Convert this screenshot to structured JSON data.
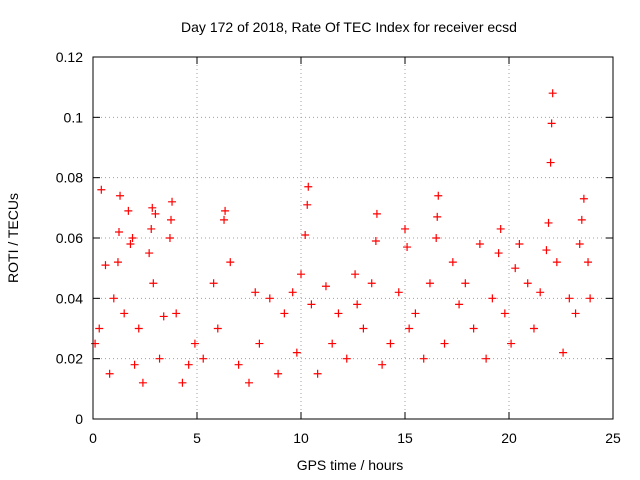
{
  "chart_data": {
    "type": "scatter",
    "title": "Day 172 of 2018, Rate Of TEC Index for receiver ecsd",
    "xlabel": "GPS time / hours",
    "ylabel": "ROTI / TECUs",
    "xlim": [
      0,
      25
    ],
    "ylim": [
      0,
      0.12
    ],
    "xticks": [
      "0",
      "5",
      "10",
      "15",
      "20",
      "25"
    ],
    "yticks": [
      "0",
      "0.02",
      "0.04",
      "0.06",
      "0.08",
      "0.1",
      "0.12"
    ],
    "grid": true,
    "marker": "plus",
    "series": [
      {
        "color": "#ff0000",
        "x": [
          0.1,
          0.3,
          0.4,
          0.6,
          0.8,
          1.0,
          1.2,
          1.25,
          1.3,
          1.5,
          1.7,
          1.8,
          1.9,
          2.0,
          2.2,
          2.4,
          2.7,
          2.8,
          2.85,
          2.9,
          3.0,
          3.2,
          3.4,
          3.7,
          3.75,
          3.8,
          4.0,
          4.3,
          4.6,
          4.9,
          5.3,
          5.8,
          6.0,
          6.3,
          6.35,
          6.6,
          7.0,
          7.5,
          7.8,
          8.0,
          8.5,
          8.9,
          9.2,
          9.6,
          9.8,
          10.0,
          10.2,
          10.3,
          10.35,
          10.5,
          10.8,
          11.2,
          11.5,
          11.8,
          12.2,
          12.6,
          12.7,
          13.0,
          13.4,
          13.6,
          13.65,
          13.9,
          14.3,
          14.7,
          15.0,
          15.1,
          15.2,
          15.5,
          15.9,
          16.2,
          16.5,
          16.55,
          16.6,
          16.9,
          17.3,
          17.6,
          17.9,
          18.3,
          18.6,
          18.9,
          19.2,
          19.5,
          19.6,
          19.8,
          20.1,
          20.3,
          20.5,
          20.9,
          21.2,
          21.5,
          21.8,
          21.9,
          22.0,
          22.05,
          22.1,
          22.3,
          22.6,
          22.9,
          23.2,
          23.4,
          23.5,
          23.6,
          23.8,
          23.9
        ],
        "y": [
          0.025,
          0.03,
          0.076,
          0.051,
          0.015,
          0.04,
          0.052,
          0.062,
          0.074,
          0.035,
          0.069,
          0.058,
          0.06,
          0.018,
          0.03,
          0.012,
          0.055,
          0.063,
          0.07,
          0.045,
          0.068,
          0.02,
          0.034,
          0.06,
          0.066,
          0.072,
          0.035,
          0.012,
          0.018,
          0.025,
          0.02,
          0.045,
          0.03,
          0.066,
          0.069,
          0.052,
          0.018,
          0.012,
          0.042,
          0.025,
          0.04,
          0.015,
          0.035,
          0.042,
          0.022,
          0.048,
          0.061,
          0.071,
          0.077,
          0.038,
          0.015,
          0.044,
          0.025,
          0.035,
          0.02,
          0.048,
          0.038,
          0.03,
          0.045,
          0.059,
          0.068,
          0.018,
          0.025,
          0.042,
          0.063,
          0.057,
          0.03,
          0.035,
          0.02,
          0.045,
          0.06,
          0.067,
          0.074,
          0.025,
          0.052,
          0.038,
          0.045,
          0.03,
          0.058,
          0.02,
          0.04,
          0.055,
          0.063,
          0.035,
          0.025,
          0.05,
          0.058,
          0.045,
          0.03,
          0.042,
          0.056,
          0.065,
          0.085,
          0.098,
          0.108,
          0.052,
          0.022,
          0.04,
          0.035,
          0.058,
          0.066,
          0.073,
          0.052,
          0.04
        ]
      }
    ]
  }
}
